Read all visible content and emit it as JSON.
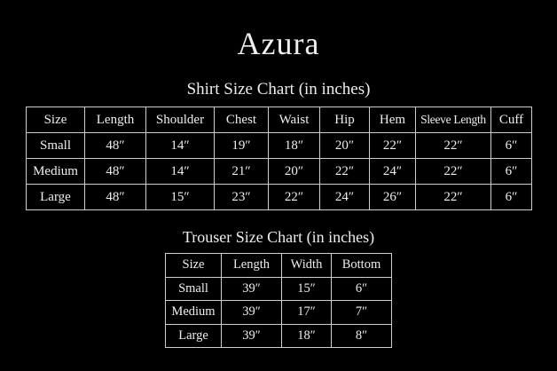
{
  "brand": "Azura",
  "shirt": {
    "title": "Shirt Size Chart (in inches)",
    "headers": [
      "Size",
      "Length",
      "Shoulder",
      "Chest",
      "Waist",
      "Hip",
      "Hem",
      "Sleeve Length",
      "Cuff"
    ],
    "rows": [
      [
        "Small",
        "48″",
        "14″",
        "19″",
        "18″",
        "20″",
        "22″",
        "22″",
        "6″"
      ],
      [
        "Medium",
        "48″",
        "14″",
        "21″",
        "20″",
        "22″",
        "24″",
        "22″",
        "6″"
      ],
      [
        "Large",
        "48″",
        "15″",
        "23″",
        "22″",
        "24″",
        "26″",
        "22″",
        "6″"
      ]
    ]
  },
  "trouser": {
    "title": "Trouser Size Chart (in inches)",
    "headers": [
      "Size",
      "Length",
      "Width",
      "Bottom"
    ],
    "rows": [
      [
        "Small",
        "39″",
        "15″",
        "6″"
      ],
      [
        "Medium",
        "39″",
        "17″",
        "7″"
      ],
      [
        "Large",
        "39″",
        "18″",
        "8″"
      ]
    ]
  }
}
